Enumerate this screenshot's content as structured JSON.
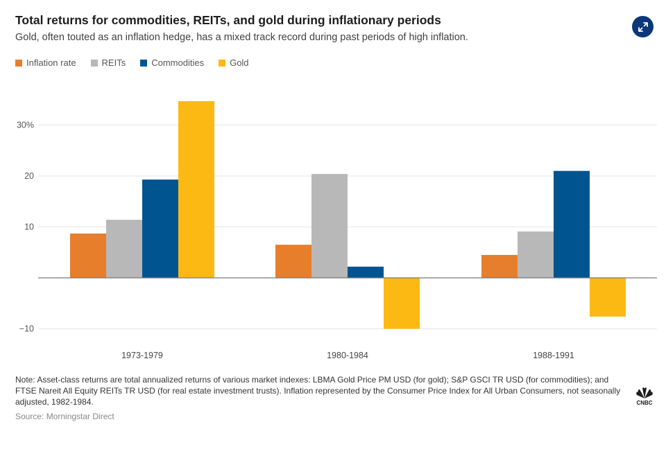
{
  "header": {
    "title": "Total returns for commodities, REITs, and gold during inflationary periods",
    "subtitle": "Gold, often touted as an inflation hedge, has a mixed track record during past periods of high inflation.",
    "expand_icon": "expand-arrows-icon"
  },
  "colors": {
    "inflation": "#e67e2b",
    "reits": "#b8b8b8",
    "commodities": "#00548f",
    "gold": "#fdb913",
    "button": "#0c3778",
    "gridline": "#e6e6e6",
    "zeroline": "#777777"
  },
  "legend": [
    {
      "label": "Inflation rate",
      "color": "#e67e2b"
    },
    {
      "label": "REITs",
      "color": "#b8b8b8"
    },
    {
      "label": "Commodities",
      "color": "#00548f"
    },
    {
      "label": "Gold",
      "color": "#fdb913"
    }
  ],
  "chart_data": {
    "type": "bar",
    "title": "Total returns for commodities, REITs, and gold during inflationary periods",
    "subtitle": "Gold, often touted as an inflation hedge, has a mixed track record during past periods of high inflation.",
    "categories": [
      "1973-1979",
      "1980-1984",
      "1988-1991"
    ],
    "series": [
      {
        "name": "Inflation rate",
        "color": "#e67e2b",
        "values": [
          8.7,
          6.5,
          4.5
        ]
      },
      {
        "name": "REITs",
        "color": "#b8b8b8",
        "values": [
          11.4,
          20.4,
          9.1
        ]
      },
      {
        "name": "Commodities",
        "color": "#00548f",
        "values": [
          19.3,
          2.2,
          21.0
        ]
      },
      {
        "name": "Gold",
        "color": "#fdb913",
        "values": [
          34.7,
          -10.0,
          -7.6
        ]
      }
    ],
    "xlabel": "",
    "ylabel": "",
    "ylim": [
      -11,
      38
    ],
    "yticks": [
      30,
      20,
      10,
      -10
    ],
    "ytick_labels": [
      "30%",
      "20",
      "10",
      "−10"
    ],
    "grid": true,
    "legend_position": "top-left"
  },
  "footer": {
    "note": "Note: Asset-class returns are total annualized returns of various market indexes: LBMA Gold Price PM USD (for gold); S&P GSCI TR USD (for commodities); and FTSE Nareit All Equity REITs TR USD (for real estate investment trusts). Inflation represented by the Consumer Price Index for All Urban Consumers, not seasonally adjusted, 1982-1984.",
    "source": "Source: Morningstar Direct",
    "logo": "CNBC"
  }
}
